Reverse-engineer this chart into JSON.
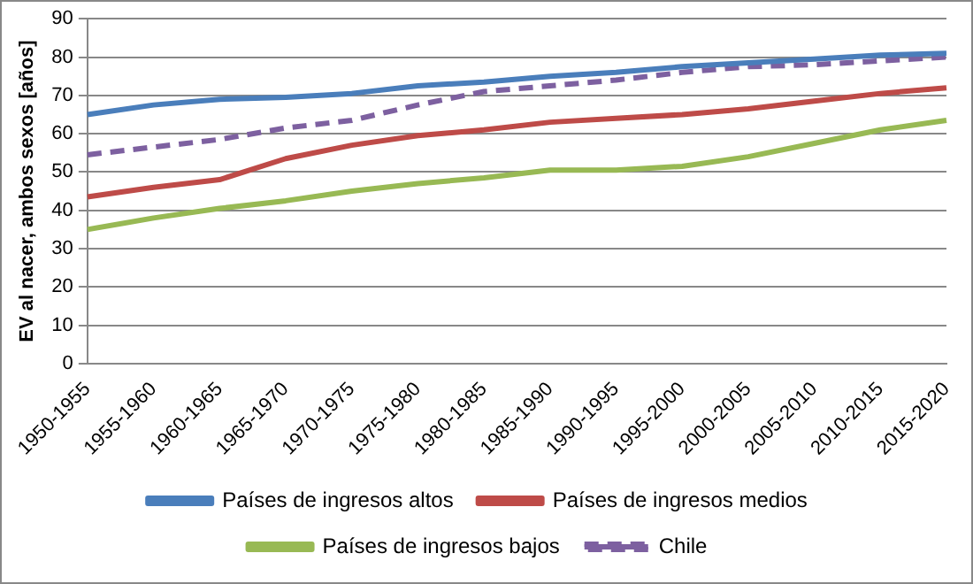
{
  "chart_data": {
    "type": "line",
    "ylabel": "EV al nacer, ambos sexos [años]",
    "categories": [
      "1950-1955",
      "1955-1960",
      "1960-1965",
      "1965-1970",
      "1970-1975",
      "1975-1980",
      "1980-1985",
      "1985-1990",
      "1990-1995",
      "1995-2000",
      "2000-2005",
      "2005-2010",
      "2010-2015",
      "2015-2020"
    ],
    "series": [
      {
        "name": "Países de ingresos altos",
        "color": "#4a7ebb",
        "values": [
          65,
          67.5,
          69,
          69.5,
          70.5,
          72.5,
          73.5,
          75,
          76,
          77.5,
          78.5,
          79.5,
          80.5,
          81
        ]
      },
      {
        "name": "Países de ingresos medios",
        "color": "#be4b48",
        "values": [
          43.5,
          46,
          48,
          53.5,
          57,
          59.5,
          61,
          63,
          64,
          65,
          66.5,
          68.5,
          70.5,
          72
        ]
      },
      {
        "name": "Países de ingresos bajos",
        "color": "#98b954",
        "values": [
          35,
          38,
          40.5,
          42.5,
          45,
          47,
          48.5,
          50.5,
          50.5,
          51.5,
          54,
          57.5,
          61,
          63.5
        ]
      },
      {
        "name": "Chile",
        "color": "#7d60a0",
        "line_style": "dashed",
        "values": [
          54.5,
          56.5,
          58.5,
          61.5,
          63.5,
          67.5,
          71,
          72.5,
          74,
          76,
          77.5,
          78,
          79,
          80
        ]
      }
    ],
    "ylim": [
      0,
      90
    ],
    "yticks": [
      0,
      10,
      20,
      30,
      40,
      50,
      60,
      70,
      80,
      90
    ],
    "grid": "y",
    "legend": "bottom",
    "marker": "none"
  }
}
